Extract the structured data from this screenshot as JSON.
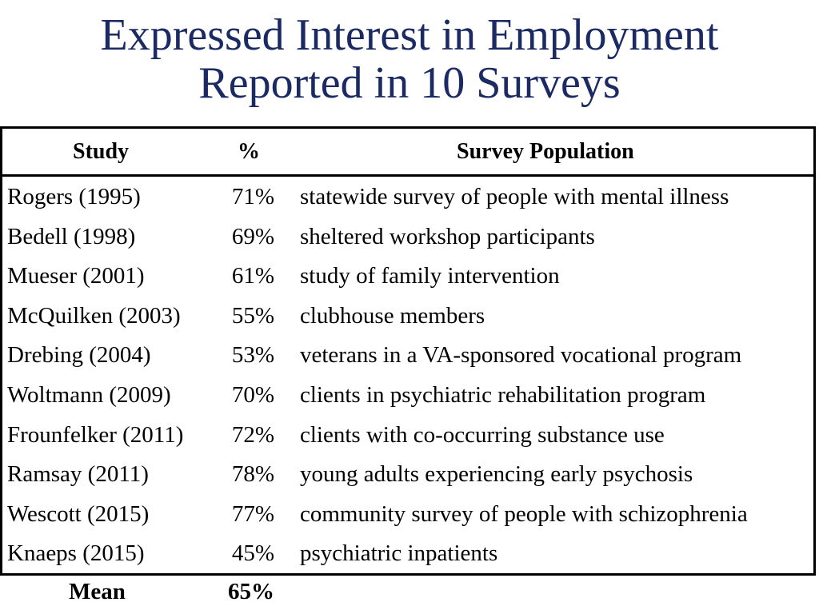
{
  "title": {
    "line1": "Expressed Interest in Employment",
    "line2": "Reported in 10 Surveys"
  },
  "table": {
    "headers": {
      "study": "Study",
      "pct": "%",
      "population": "Survey Population"
    },
    "rows": [
      {
        "study": "Rogers (1995)",
        "pct": "71%",
        "population": "statewide survey of people with mental illness"
      },
      {
        "study": "Bedell (1998)",
        "pct": "69%",
        "population": "sheltered workshop participants"
      },
      {
        "study": "Mueser (2001)",
        "pct": "61%",
        "population": "study of family intervention"
      },
      {
        "study": "McQuilken (2003)",
        "pct": "55%",
        "population": "clubhouse members"
      },
      {
        "study": "Drebing (2004)",
        "pct": "53%",
        "population": "veterans in a VA-sponsored vocational program"
      },
      {
        "study": "Woltmann (2009)",
        "pct": "70%",
        "population": "clients in psychiatric rehabilitation program"
      },
      {
        "study": "Frounfelker (2011)",
        "pct": "72%",
        "population": "clients with co-occurring substance use"
      },
      {
        "study": "Ramsay (2011)",
        "pct": "78%",
        "population": "young adults experiencing early psychosis"
      },
      {
        "study": "Wescott (2015)",
        "pct": "77%",
        "population": "community survey of people with schizophrenia"
      },
      {
        "study": "Knaeps (2015)",
        "pct": "45%",
        "population": "psychiatric inpatients"
      }
    ],
    "mean": {
      "label": "Mean",
      "pct": "65%"
    }
  }
}
